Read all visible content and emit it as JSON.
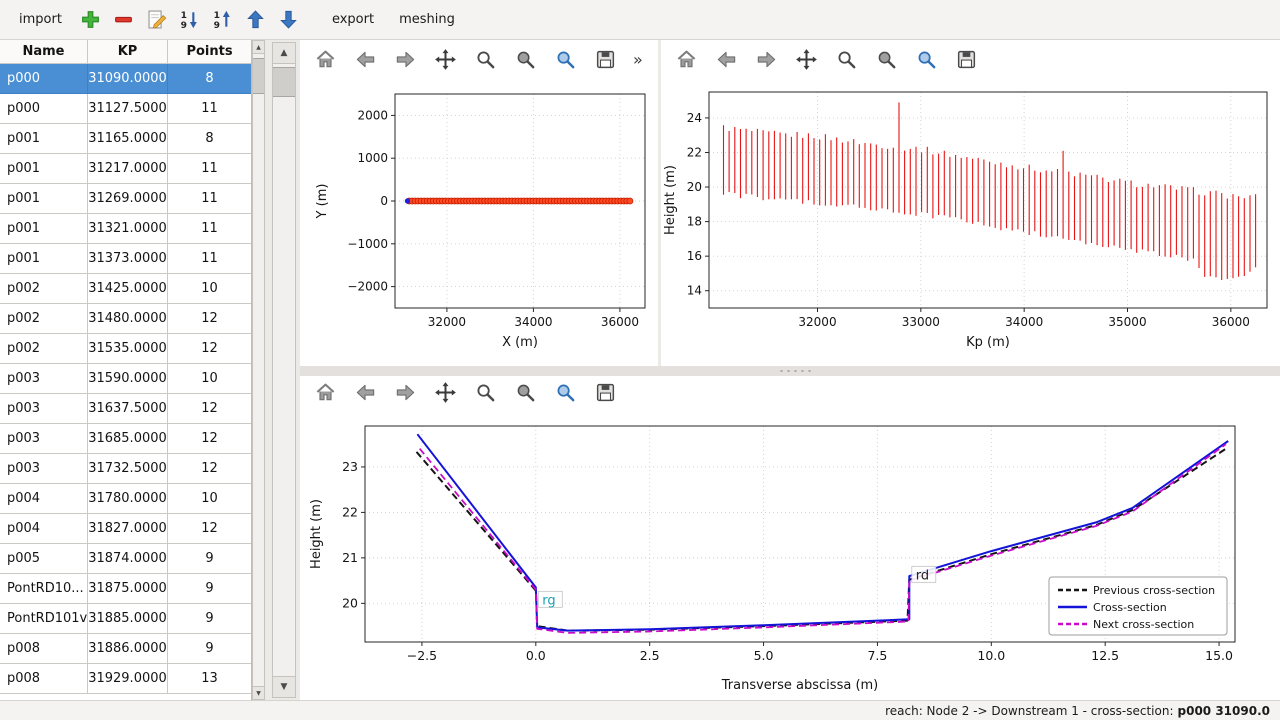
{
  "icons": {
    "scroll_up": "▲",
    "scroll_down": "▼",
    "overflow": "»"
  },
  "top_toolbar": {
    "items": [
      {
        "kind": "button",
        "name": "import-button",
        "label": "import"
      },
      {
        "kind": "icon",
        "name": "add-cross-section-button",
        "icon": "plus-icon"
      },
      {
        "kind": "icon",
        "name": "remove-cross-section-button",
        "icon": "minus-icon"
      },
      {
        "kind": "icon",
        "name": "edit-cross-section-button",
        "icon": "edit-icon"
      },
      {
        "kind": "icon",
        "name": "sort-descending-button",
        "icon": "sort-desc-icon"
      },
      {
        "kind": "icon",
        "name": "sort-ascending-button",
        "icon": "sort-asc-icon"
      },
      {
        "kind": "icon",
        "name": "move-up-button",
        "icon": "arrow-up-icon"
      },
      {
        "kind": "icon",
        "name": "move-down-button",
        "icon": "arrow-down-icon"
      },
      {
        "kind": "button",
        "name": "export-button",
        "label": "export"
      },
      {
        "kind": "button",
        "name": "meshing-button",
        "label": "meshing"
      }
    ]
  },
  "cross_section_table": {
    "columns": [
      "Name",
      "KP",
      "Points"
    ],
    "selected_row_index": 0,
    "rows": [
      [
        "p000",
        "31090.0000",
        "8"
      ],
      [
        "p000",
        "31127.5000",
        "11"
      ],
      [
        "p001",
        "31165.0000",
        "8"
      ],
      [
        "p001",
        "31217.0000",
        "11"
      ],
      [
        "p001",
        "31269.0000",
        "11"
      ],
      [
        "p001",
        "31321.0000",
        "11"
      ],
      [
        "p001",
        "31373.0000",
        "11"
      ],
      [
        "p002",
        "31425.0000",
        "10"
      ],
      [
        "p002",
        "31480.0000",
        "12"
      ],
      [
        "p002",
        "31535.0000",
        "12"
      ],
      [
        "p003",
        "31590.0000",
        "10"
      ],
      [
        "p003",
        "31637.5000",
        "12"
      ],
      [
        "p003",
        "31685.0000",
        "12"
      ],
      [
        "p003",
        "31732.5000",
        "12"
      ],
      [
        "p004",
        "31780.0000",
        "10"
      ],
      [
        "p004",
        "31827.0000",
        "12"
      ],
      [
        "p005",
        "31874.0000",
        "9"
      ],
      [
        "PontRD10...",
        "31875.0000",
        "9"
      ],
      [
        "PontRD101v",
        "31885.0000",
        "9"
      ],
      [
        "p008",
        "31886.0000",
        "9"
      ],
      [
        "p008",
        "31929.0000",
        "13"
      ]
    ]
  },
  "plot_toolbar": {
    "icons": [
      {
        "name": "home-button",
        "icon": "home-icon"
      },
      {
        "name": "back-button",
        "icon": "back-icon"
      },
      {
        "name": "forward-button",
        "icon": "forward-icon"
      },
      {
        "name": "pan-button",
        "icon": "pan-icon"
      },
      {
        "name": "zoom-button",
        "icon": "zoom-icon"
      },
      {
        "name": "subplots-button",
        "icon": "subplots-icon"
      },
      {
        "name": "customize-button",
        "icon": "customize-icon"
      },
      {
        "name": "save-button",
        "icon": "save-icon"
      }
    ]
  },
  "chart_data": [
    {
      "id": "plan_view",
      "type": "scatter",
      "xlabel": "X (m)",
      "ylabel": "Y (m)",
      "xlim": [
        30800,
        36580
      ],
      "ylim": [
        -2500,
        2500
      ],
      "xticks": [
        32000,
        34000,
        36000
      ],
      "yticks": [
        -2000,
        -1000,
        0,
        1000,
        2000
      ],
      "xtick_decimals": 0,
      "ytick_decimals": 0,
      "grid": true,
      "series": [
        {
          "name": "cross-section positions",
          "marker": "circle",
          "color": "#ff4a22",
          "edge": "#c21e04",
          "x_start": 31127,
          "x_end": 36230,
          "count": 74,
          "y": 0
        },
        {
          "name": "selected cross-section",
          "marker": "point",
          "color": "#2222d8",
          "x": 31090,
          "y": 0
        }
      ]
    },
    {
      "id": "longitudinal_profile",
      "type": "vlines",
      "xlabel": "Kp (m)",
      "ylabel": "Height (m)",
      "xlim": [
        30950,
        36350
      ],
      "ylim": [
        13.0,
        25.5
      ],
      "xticks": [
        32000,
        33000,
        34000,
        35000,
        36000
      ],
      "yticks": [
        14,
        16,
        18,
        20,
        22,
        24
      ],
      "xtick_decimals": 0,
      "ytick_decimals": 0,
      "grid": true,
      "color": "#e61414",
      "count": 95,
      "kp_start": 31090,
      "kp_end": 36240,
      "bottom_envelope": [
        [
          31090,
          19.6
        ],
        [
          31500,
          19.35
        ],
        [
          32000,
          19.1
        ],
        [
          32500,
          18.75
        ],
        [
          33000,
          18.45
        ],
        [
          33500,
          17.95
        ],
        [
          34000,
          17.4
        ],
        [
          34500,
          16.9
        ],
        [
          35000,
          16.35
        ],
        [
          35400,
          16.05
        ],
        [
          35650,
          15.8
        ],
        [
          35750,
          14.9
        ],
        [
          35950,
          14.55
        ],
        [
          36100,
          14.7
        ],
        [
          36240,
          15.3
        ]
      ],
      "top_envelope": [
        [
          31090,
          23.45
        ],
        [
          31500,
          23.1
        ],
        [
          32000,
          22.95
        ],
        [
          32500,
          22.5
        ],
        [
          33000,
          22.2
        ],
        [
          33500,
          21.65
        ],
        [
          34000,
          21.15
        ],
        [
          34500,
          20.75
        ],
        [
          35000,
          20.25
        ],
        [
          35500,
          19.9
        ],
        [
          36000,
          19.5
        ],
        [
          36240,
          19.4
        ]
      ],
      "spikes": [
        [
          32780,
          24.9
        ],
        [
          34380,
          22.1
        ]
      ]
    },
    {
      "id": "cross_section",
      "type": "line",
      "xlabel": "Transverse abscissa (m)",
      "ylabel": "Height (m)",
      "xlim": [
        -3.75,
        15.35
      ],
      "ylim": [
        19.15,
        23.9
      ],
      "xticks": [
        -2.5,
        0.0,
        2.5,
        5.0,
        7.5,
        10.0,
        12.5,
        15.0
      ],
      "yticks": [
        20,
        21,
        22,
        23
      ],
      "xtick_decimals": 1,
      "ytick_decimals": 0,
      "grid": true,
      "series": [
        {
          "name": "Previous cross-section",
          "color": "#151515",
          "dash": "7,4",
          "width": 2,
          "points": [
            [
              -2.62,
              23.33
            ],
            [
              0.0,
              20.28
            ],
            [
              0.03,
              19.5
            ],
            [
              0.7,
              19.4
            ],
            [
              2.5,
              19.42
            ],
            [
              5.0,
              19.5
            ],
            [
              8.16,
              19.62
            ],
            [
              8.2,
              20.52
            ],
            [
              10.0,
              21.08
            ],
            [
              12.3,
              21.72
            ],
            [
              13.1,
              22.05
            ],
            [
              15.18,
              23.42
            ]
          ]
        },
        {
          "name": "Cross-section",
          "color": "#1414d8",
          "dash": null,
          "width": 2,
          "points": [
            [
              -2.6,
              23.72
            ],
            [
              0.0,
              20.35
            ],
            [
              0.03,
              19.47
            ],
            [
              0.7,
              19.4
            ],
            [
              2.5,
              19.43
            ],
            [
              5.0,
              19.52
            ],
            [
              8.2,
              19.65
            ],
            [
              8.2,
              20.6
            ],
            [
              10.0,
              21.15
            ],
            [
              12.3,
              21.78
            ],
            [
              13.1,
              22.1
            ],
            [
              15.2,
              23.57
            ]
          ]
        },
        {
          "name": "Next cross-section",
          "color": "#c80cc8",
          "dash": "7,4",
          "width": 1.8,
          "points": [
            [
              -2.55,
              23.4
            ],
            [
              0.0,
              20.3
            ],
            [
              0.03,
              19.44
            ],
            [
              0.7,
              19.35
            ],
            [
              2.5,
              19.38
            ],
            [
              5.0,
              19.47
            ],
            [
              8.18,
              19.6
            ],
            [
              8.2,
              20.5
            ],
            [
              10.0,
              21.05
            ],
            [
              12.3,
              21.7
            ],
            [
              13.1,
              22.02
            ],
            [
              15.15,
              23.5
            ]
          ]
        }
      ],
      "annotations": [
        {
          "text": "rg",
          "x": 0.12,
          "y": 20.0,
          "color": "#1a9fb4"
        },
        {
          "text": "rd",
          "x": 8.32,
          "y": 20.55,
          "color": "#222222"
        }
      ],
      "legend": {
        "position": "lower right",
        "entries": [
          "Previous cross-section",
          "Cross-section",
          "Next cross-section"
        ]
      }
    }
  ],
  "status_bar": {
    "prefix": "reach: Node 2 -> Downstream 1 - cross-section:",
    "selection": "p000 31090.0"
  }
}
